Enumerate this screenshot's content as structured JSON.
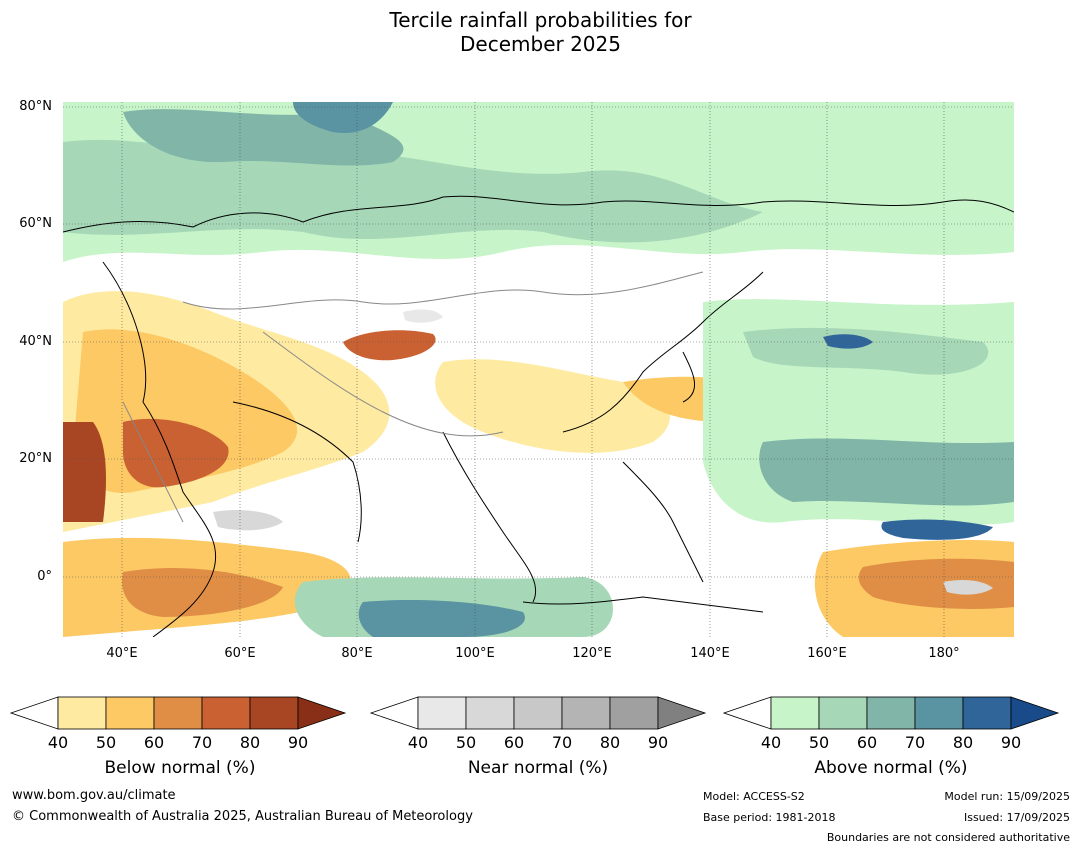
{
  "title_line1": "Tercile rainfall probabilities for",
  "title_line2": "December 2025",
  "lat_labels": [
    "80°N",
    "60°N",
    "40°N",
    "20°N",
    "0°"
  ],
  "lon_labels": [
    "40°E",
    "60°E",
    "80°E",
    "100°E",
    "120°E",
    "140°E",
    "160°E",
    "180°"
  ],
  "colorbars": [
    {
      "label": "Below normal (%)",
      "ticks": [
        "40",
        "50",
        "60",
        "70",
        "80",
        "90"
      ],
      "colors": [
        "#ffffff",
        "#feeba1",
        "#fcc964",
        "#e08e45",
        "#c96132",
        "#a84523",
        "#8a2f17"
      ]
    },
    {
      "label": "Near normal (%)",
      "ticks": [
        "40",
        "50",
        "60",
        "70",
        "80",
        "90"
      ],
      "colors": [
        "#ffffff",
        "#e8e8e8",
        "#d8d8d8",
        "#c8c8c8",
        "#b4b4b4",
        "#a0a0a0",
        "#808080"
      ]
    },
    {
      "label": "Above normal (%)",
      "ticks": [
        "40",
        "50",
        "60",
        "70",
        "80",
        "90"
      ],
      "colors": [
        "#ffffff",
        "#c7f5c9",
        "#a6d8b8",
        "#80b5a8",
        "#5a93a2",
        "#30659a",
        "#194b8a"
      ]
    }
  ],
  "footer": {
    "website": "www.bom.gov.au/climate",
    "copyright": "© Commonwealth of Australia 2025, Australian Bureau of Meteorology",
    "model": "Model: ACCESS-S2",
    "base_period": "Base period: 1981-2018",
    "model_run": "Model run: 15/09/2025",
    "issued": "Issued: 17/09/2025",
    "boundaries": "Boundaries are not considered authoritative"
  }
}
